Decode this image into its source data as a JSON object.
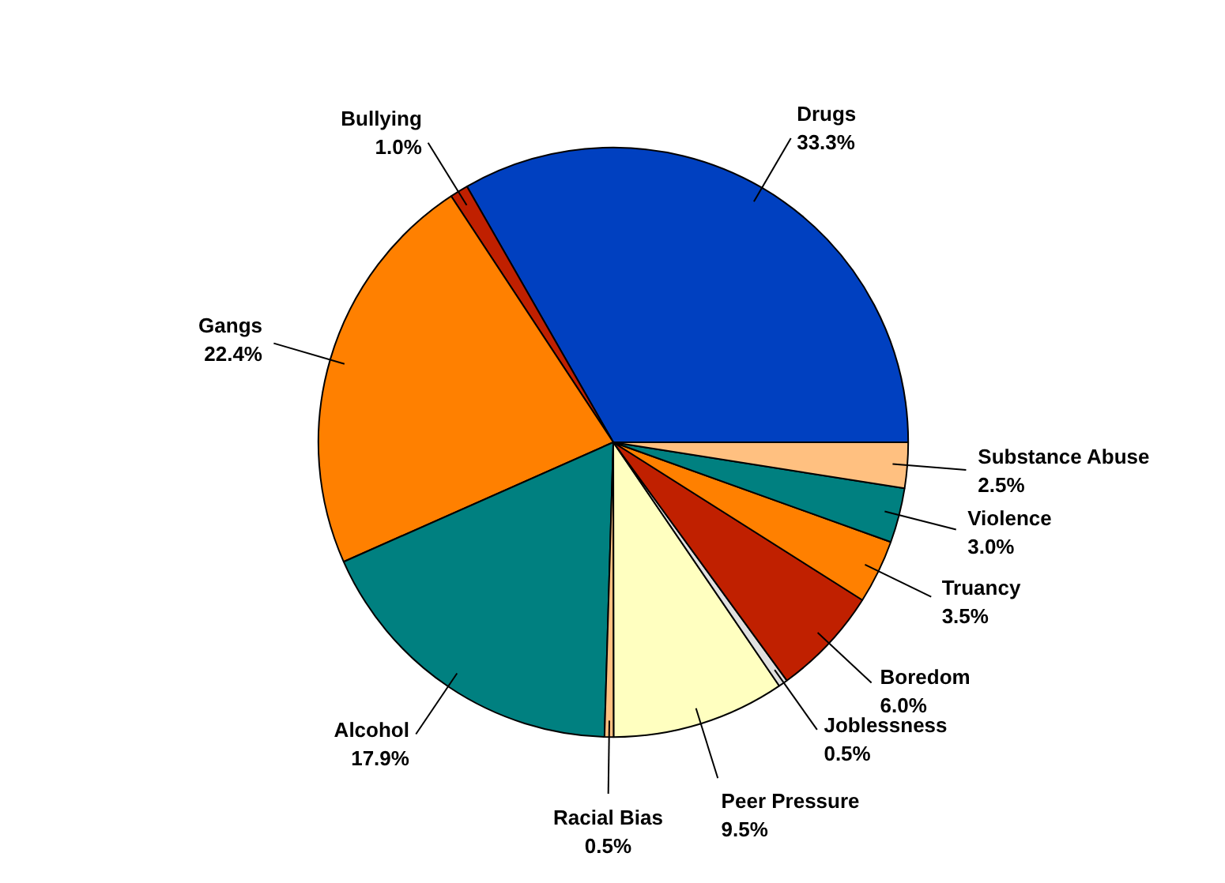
{
  "chart_data": {
    "type": "pie",
    "categories": [
      "Drugs",
      "Bullying",
      "Gangs",
      "Alcohol",
      "Racial Bias",
      "Peer Pressure",
      "Joblessness",
      "Boredom",
      "Truancy",
      "Violence",
      "Substance Abuse"
    ],
    "values": [
      33.3,
      1.0,
      22.4,
      17.9,
      0.5,
      9.5,
      0.5,
      6.0,
      3.5,
      3.0,
      2.5
    ],
    "colors": [
      "#0040c0",
      "#c02000",
      "#ff8000",
      "#008080",
      "#ffc080",
      "#ffffc0",
      "#e0e0e0",
      "#c02000",
      "#ff8000",
      "#008080",
      "#ffc080"
    ],
    "value_labels": [
      "33.3%",
      "1.0%",
      "22.4%",
      "17.9%",
      "0.5%",
      "9.5%",
      "0.5%",
      "6.0%",
      "3.5%",
      "3.0%",
      "2.5%"
    ]
  }
}
